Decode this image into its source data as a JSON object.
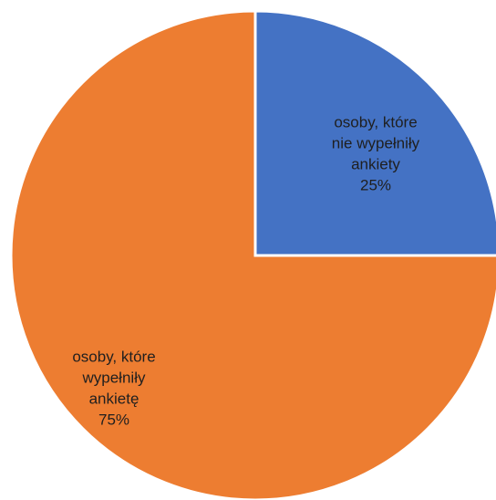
{
  "chart_data": {
    "type": "pie",
    "slices": [
      {
        "label_lines": [
          "osoby, które",
          "nie wypełniły",
          "ankiety"
        ],
        "percent_label": "25%",
        "value": 25,
        "color": "#4472C4"
      },
      {
        "label_lines": [
          "osoby, które",
          "wypełniły",
          "ankietę"
        ],
        "percent_label": "75%",
        "value": 75,
        "color": "#ED7D31"
      }
    ],
    "start_angle_deg": 0,
    "direction": "clockwise",
    "slice_separator_color": "#ffffff",
    "title": "",
    "legend": "none",
    "data_labels": "inside"
  }
}
